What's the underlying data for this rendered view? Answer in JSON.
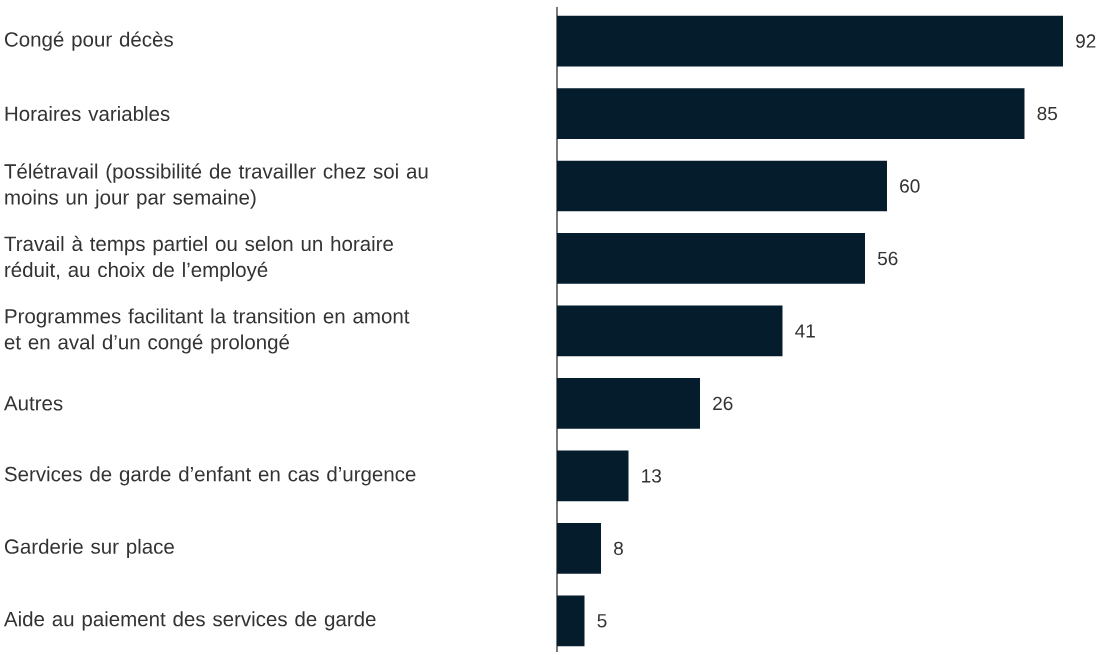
{
  "chart_data": {
    "type": "bar",
    "orientation": "horizontal",
    "categories": [
      "Congé pour décès",
      "Horaires variables",
      "Télétravail (possibilité de travailler chez soi au moins un jour par semaine)",
      "Travail à temps partiel ou selon un horaire réduit, au choix de l’employé",
      "Programmes facilitant la transition en amont et en aval d’un congé prolongé",
      "Autres",
      "Services de garde d’enfant en cas d’urgence",
      "Garderie sur place",
      "Aide au paiement des services de garde"
    ],
    "values": [
      92,
      85,
      60,
      56,
      41,
      26,
      13,
      8,
      5
    ],
    "color": "#051c2c",
    "data_labels": true,
    "tick_labels": "y"
  }
}
